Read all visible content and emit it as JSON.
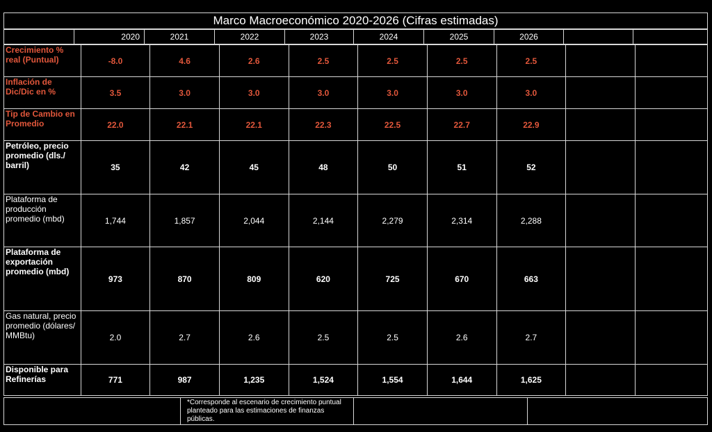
{
  "title": "Marco Macroeconómico 2020-2026 (Cifras estimadas)",
  "years": [
    "2020",
    "2021",
    "2022",
    "2023",
    "2024",
    "2025",
    "2026"
  ],
  "rows": [
    {
      "label": "Crecimiento % real (Puntual)",
      "style": "red",
      "values": [
        "-8.0",
        "4.6",
        "2.6",
        "2.5",
        "2.5",
        "2.5",
        "2.5"
      ]
    },
    {
      "label": "Inflación de Dic/Dic en %",
      "style": "red",
      "values": [
        "3.5",
        "3.0",
        "3.0",
        "3.0",
        "3.0",
        "3.0",
        "3.0"
      ]
    },
    {
      "label": "Tip de Cambio en Promedio",
      "style": "red",
      "values": [
        "22.0",
        "22.1",
        "22.1",
        "22.3",
        "22.5",
        "22.7",
        "22.9"
      ]
    },
    {
      "label": "Petróleo, precio promedio (dls./ barril)",
      "style": "bold",
      "values": [
        "35",
        "42",
        "45",
        "48",
        "50",
        "51",
        "52"
      ]
    },
    {
      "label": "Plataforma de producción promedio (mbd)",
      "style": "normal",
      "values": [
        "1,744",
        "1,857",
        "2,044",
        "2,144",
        "2,279",
        "2,314",
        "2,288"
      ]
    },
    {
      "label": "Plataforma de exportación promedio (mbd)",
      "style": "bold",
      "values": [
        "973",
        "870",
        "809",
        "620",
        "725",
        "670",
        "663"
      ]
    },
    {
      "label": "Gas natural, precio promedio (dólares/ MMBtu)",
      "style": "normal",
      "values": [
        "2.0",
        "2.7",
        "2.6",
        "2.5",
        "2.5",
        "2.6",
        "2.7"
      ]
    },
    {
      "label": "Disponible para Refinerías",
      "style": "bold",
      "values": [
        "771",
        "987",
        "1,235",
        "1,524",
        "1,554",
        "1,644",
        "1,625"
      ]
    }
  ],
  "footnote": "*Corresponde al escenario de crecimiento puntual planteado para las estimaciones de finanzas públicas."
}
